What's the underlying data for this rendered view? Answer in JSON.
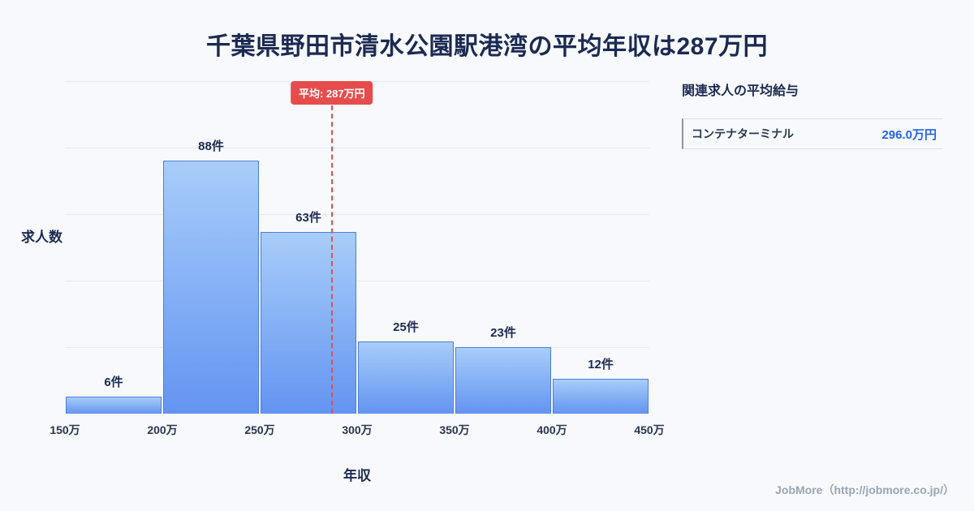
{
  "title": "千葉県野田市清水公園駅港湾の平均年収は287万円",
  "colors": {
    "bar_top": "#a8cdf9",
    "bar_bottom": "#6394f1",
    "bar_border": "#4a7fd9",
    "average_line": "#e64c4c",
    "value_accent": "#2563eb"
  },
  "chart_data": {
    "type": "bar",
    "title": "千葉県野田市清水公園駅港湾の平均年収は287万円",
    "categories": [
      "150万-200万",
      "200万-250万",
      "250万-300万",
      "300万-350万",
      "350万-400万",
      "400万-450万"
    ],
    "values": [
      6,
      88,
      63,
      25,
      23,
      12
    ],
    "bar_labels": [
      "6件",
      "88件",
      "63件",
      "25件",
      "23件",
      "12件"
    ],
    "x_ticks": [
      "150万",
      "200万",
      "250万",
      "300万",
      "350万",
      "400万",
      "450万"
    ],
    "x_range": [
      150,
      450
    ],
    "xlabel": "年収",
    "ylabel": "求人数",
    "ylim": [
      0,
      100
    ],
    "grid": true,
    "legend": "none",
    "average": {
      "value": 287,
      "label": "平均: 287万円"
    }
  },
  "side_panel": {
    "heading": "関連求人の平均給与",
    "rows": [
      {
        "label": "コンテナターミナル",
        "value": "296.0万円"
      }
    ]
  },
  "footer": {
    "credit": "JobMore（http://jobmore.co.jp/）"
  }
}
